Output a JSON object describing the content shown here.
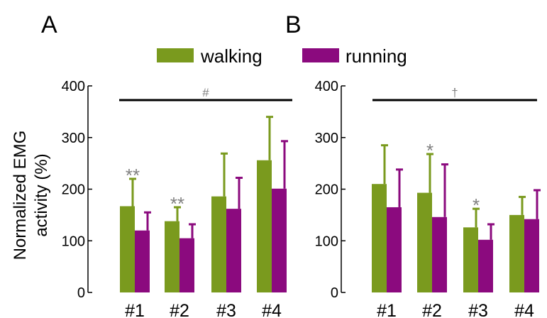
{
  "legend": {
    "walking": "walking",
    "running": "running"
  },
  "colors": {
    "walking": "#7a9a1e",
    "running": "#8b0a7e",
    "axis": "#000000",
    "sig": "#808080"
  },
  "ylabel_line1": "Normalized EMG",
  "ylabel_line2": "activity (%)",
  "chart_data": [
    {
      "type": "bar",
      "panel": "A",
      "categories": [
        "#1",
        "#2",
        "#3",
        "#4"
      ],
      "ylim": [
        0,
        400
      ],
      "yticks": [
        0,
        100,
        200,
        300,
        400
      ],
      "series": [
        {
          "name": "walking",
          "values": [
            167,
            138,
            186,
            256
          ],
          "errors": [
            53,
            27,
            83,
            84
          ]
        },
        {
          "name": "running",
          "values": [
            120,
            105,
            162,
            201
          ],
          "errors": [
            35,
            27,
            60,
            92
          ]
        }
      ],
      "annotations": [
        "**",
        "**",
        "",
        ""
      ],
      "top_annotation": "#"
    },
    {
      "type": "bar",
      "panel": "B",
      "categories": [
        "#1",
        "#2",
        "#3",
        "#4"
      ],
      "ylim": [
        0,
        400
      ],
      "yticks": [
        0,
        100,
        200,
        300,
        400
      ],
      "series": [
        {
          "name": "walking",
          "values": [
            210,
            193,
            126,
            150
          ],
          "errors": [
            75,
            75,
            36,
            35
          ]
        },
        {
          "name": "running",
          "values": [
            165,
            146,
            102,
            142
          ],
          "errors": [
            73,
            102,
            30,
            56
          ]
        }
      ],
      "annotations": [
        "",
        "*",
        "*",
        ""
      ],
      "top_annotation": "†"
    }
  ]
}
